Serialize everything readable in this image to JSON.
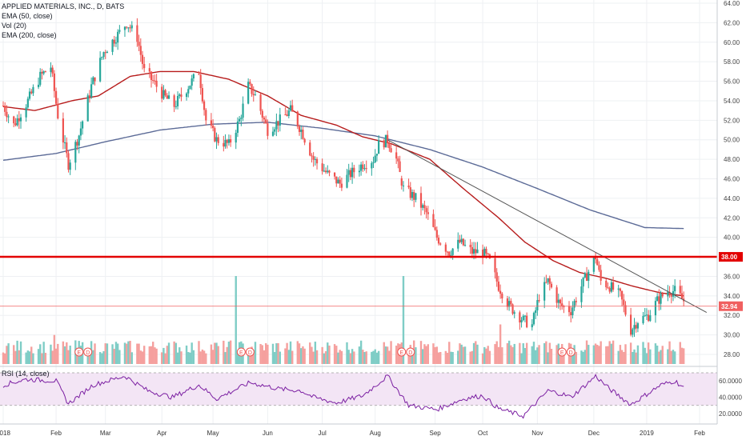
{
  "legend": {
    "symbol": "APPLIED MATERIALS, INC., D, BATS",
    "ema50": "EMA (50, close)",
    "vol": "Vol (20)",
    "ema200": "EMA (200, close)",
    "rsi": "RSI (14, close)"
  },
  "colors": {
    "up": "#26a69a",
    "down": "#ef5350",
    "vol_up": "#7fcdc6",
    "vol_down": "#f5a09e",
    "ema50": "#b71c1c",
    "ema200": "#5c6b97",
    "trendline": "#555555",
    "support": "#e30000",
    "price_line": "#f06060",
    "rsi_line": "#7b1fa2",
    "rsi_bg": "#f3e5f5",
    "earnings": "#ef5350"
  },
  "chart_data": {
    "type": "candlestick",
    "title": "APPLIED MATERIALS, INC., D, BATS",
    "y_axis_ticks": [
      "64.00",
      "62.00",
      "60.00",
      "58.00",
      "56.00",
      "54.00",
      "52.00",
      "50.00",
      "48.00",
      "46.00",
      "44.00",
      "42.00",
      "40.00",
      "38.00",
      "36.00",
      "34.00",
      "32.00",
      "30.00",
      "28.00"
    ],
    "ylim": [
      27,
      64.5
    ],
    "rsi_ticks": [
      "60.0000",
      "40.0000",
      "20.0000"
    ],
    "rsi_ylim": [
      14,
      72
    ],
    "x_tick_labels": [
      "2018",
      "Feb",
      "Mar",
      "Apr",
      "May",
      "Jun",
      "Jul",
      "Aug",
      "Sep",
      "Oct",
      "Nov",
      "Dec",
      "2019",
      "Feb"
    ],
    "x_tick_dates": [
      "2018-01-02",
      "2018-02-01",
      "2018-03-01",
      "2018-04-02",
      "2018-05-01",
      "2018-06-01",
      "2018-07-02",
      "2018-08-01",
      "2018-09-04",
      "2018-10-01",
      "2018-11-01",
      "2018-12-03",
      "2019-01-02",
      "2019-02-01"
    ],
    "price_anchors": [
      [
        "2018-01-02",
        53.5
      ],
      [
        "2018-01-08",
        51.5
      ],
      [
        "2018-01-16",
        54.0
      ],
      [
        "2018-01-23",
        56.5
      ],
      [
        "2018-01-29",
        57.5
      ],
      [
        "2018-02-02",
        52.5
      ],
      [
        "2018-02-08",
        47.5
      ],
      [
        "2018-02-14",
        50.5
      ],
      [
        "2018-02-21",
        55.5
      ],
      [
        "2018-02-28",
        59.0
      ],
      [
        "2018-03-09",
        61.0
      ],
      [
        "2018-03-13",
        62.0
      ],
      [
        "2018-03-19",
        60.5
      ],
      [
        "2018-03-23",
        57.0
      ],
      [
        "2018-03-28",
        56.0
      ],
      [
        "2018-04-03",
        54.5
      ],
      [
        "2018-04-09",
        53.5
      ],
      [
        "2018-04-17",
        55.5
      ],
      [
        "2018-04-23",
        57.0
      ],
      [
        "2018-04-27",
        52.0
      ],
      [
        "2018-05-03",
        50.0
      ],
      [
        "2018-05-10",
        49.5
      ],
      [
        "2018-05-16",
        52.0
      ],
      [
        "2018-05-21",
        55.5
      ],
      [
        "2018-05-25",
        54.5
      ],
      [
        "2018-06-01",
        51.0
      ],
      [
        "2018-06-08",
        52.0
      ],
      [
        "2018-06-14",
        53.0
      ],
      [
        "2018-06-20",
        51.0
      ],
      [
        "2018-06-27",
        48.0
      ],
      [
        "2018-07-05",
        46.5
      ],
      [
        "2018-07-12",
        45.5
      ],
      [
        "2018-07-18",
        46.5
      ],
      [
        "2018-07-25",
        47.5
      ],
      [
        "2018-07-31",
        48.0
      ],
      [
        "2018-08-03",
        49.5
      ],
      [
        "2018-08-08",
        50.0
      ],
      [
        "2018-08-13",
        48.0
      ],
      [
        "2018-08-17",
        45.0
      ],
      [
        "2018-08-24",
        44.0
      ],
      [
        "2018-08-30",
        42.5
      ],
      [
        "2018-09-05",
        40.0
      ],
      [
        "2018-09-12",
        38.5
      ],
      [
        "2018-09-18",
        39.5
      ],
      [
        "2018-09-25",
        38.5
      ],
      [
        "2018-10-01",
        38.5
      ],
      [
        "2018-10-05",
        37.5
      ],
      [
        "2018-10-10",
        35.0
      ],
      [
        "2018-10-16",
        33.0
      ],
      [
        "2018-10-24",
        31.5
      ],
      [
        "2018-10-29",
        31.0
      ],
      [
        "2018-11-02",
        34.0
      ],
      [
        "2018-11-07",
        35.5
      ],
      [
        "2018-11-14",
        33.0
      ],
      [
        "2018-11-20",
        32.5
      ],
      [
        "2018-11-26",
        35.0
      ],
      [
        "2018-11-30",
        36.5
      ],
      [
        "2018-12-04",
        38.0
      ],
      [
        "2018-12-07",
        35.5
      ],
      [
        "2018-12-12",
        35.0
      ],
      [
        "2018-12-18",
        34.0
      ],
      [
        "2018-12-24",
        30.5
      ],
      [
        "2018-12-28",
        31.5
      ],
      [
        "2019-01-03",
        32.0
      ],
      [
        "2019-01-08",
        33.5
      ],
      [
        "2019-01-14",
        34.5
      ],
      [
        "2019-01-18",
        34.5
      ],
      [
        "2019-01-23",
        33.5
      ]
    ],
    "gap_dates": [
      "2018-08-16"
    ],
    "ema50_anchors": [
      [
        "2018-01-02",
        53.4
      ],
      [
        "2018-01-20",
        53.0
      ],
      [
        "2018-02-10",
        54.0
      ],
      [
        "2018-02-25",
        54.5
      ],
      [
        "2018-03-15",
        56.5
      ],
      [
        "2018-04-01",
        57.0
      ],
      [
        "2018-04-20",
        57.0
      ],
      [
        "2018-05-10",
        56.2
      ],
      [
        "2018-06-01",
        54.5
      ],
      [
        "2018-06-20",
        52.5
      ],
      [
        "2018-07-10",
        51.5
      ],
      [
        "2018-07-25",
        50.3
      ],
      [
        "2018-08-10",
        49.6
      ],
      [
        "2018-09-01",
        48.0
      ],
      [
        "2018-09-20",
        45.0
      ],
      [
        "2018-10-10",
        42.0
      ],
      [
        "2018-10-25",
        39.5
      ],
      [
        "2018-11-10",
        37.6
      ],
      [
        "2018-11-25",
        36.4
      ],
      [
        "2018-12-10",
        35.8
      ],
      [
        "2018-12-25",
        35.0
      ],
      [
        "2019-01-10",
        34.3
      ],
      [
        "2019-01-23",
        34.0
      ]
    ],
    "ema200_anchors": [
      [
        "2018-01-02",
        47.9
      ],
      [
        "2018-02-01",
        48.6
      ],
      [
        "2018-03-01",
        49.8
      ],
      [
        "2018-04-01",
        51.0
      ],
      [
        "2018-05-01",
        51.6
      ],
      [
        "2018-06-01",
        51.8
      ],
      [
        "2018-07-01",
        51.2
      ],
      [
        "2018-08-01",
        50.4
      ],
      [
        "2018-09-01",
        49.0
      ],
      [
        "2018-10-01",
        47.2
      ],
      [
        "2018-11-01",
        45.0
      ],
      [
        "2018-12-01",
        42.8
      ],
      [
        "2019-01-01",
        41.0
      ],
      [
        "2019-01-23",
        40.9
      ]
    ],
    "trendline": {
      "start": [
        "2018-08-08",
        50.0
      ],
      "end": [
        "2019-02-05",
        32.3
      ]
    },
    "support_level": "38.00",
    "current_price": "32.94",
    "volume_spikes": [
      [
        "2018-05-14",
        1.0
      ],
      [
        "2018-08-17",
        1.0
      ],
      [
        "2018-10-11",
        0.45
      ],
      [
        "2018-01-31",
        0.33
      ]
    ],
    "earnings_markers": [
      {
        "date": "2018-02-14",
        "label": "E"
      },
      {
        "date": "2018-02-19",
        "label": "D"
      },
      {
        "date": "2018-05-17",
        "label": "E"
      },
      {
        "date": "2018-05-22",
        "label": "D"
      },
      {
        "date": "2018-08-16",
        "label": "E"
      },
      {
        "date": "2018-08-21",
        "label": "D"
      },
      {
        "date": "2018-11-15",
        "label": "E"
      },
      {
        "date": "2018-11-20",
        "label": "D"
      }
    ],
    "rsi_anchors": [
      [
        "2018-01-02",
        55
      ],
      [
        "2018-01-15",
        62
      ],
      [
        "2018-02-01",
        60
      ],
      [
        "2018-02-08",
        32
      ],
      [
        "2018-02-22",
        55
      ],
      [
        "2018-03-12",
        66
      ],
      [
        "2018-03-25",
        48
      ],
      [
        "2018-04-08",
        40
      ],
      [
        "2018-04-23",
        55
      ],
      [
        "2018-05-03",
        38
      ],
      [
        "2018-05-22",
        58
      ],
      [
        "2018-06-08",
        50
      ],
      [
        "2018-06-20",
        48
      ],
      [
        "2018-06-27",
        40
      ],
      [
        "2018-07-10",
        33
      ],
      [
        "2018-07-25",
        42
      ],
      [
        "2018-08-08",
        66
      ],
      [
        "2018-08-20",
        30
      ],
      [
        "2018-09-05",
        25
      ],
      [
        "2018-09-20",
        38
      ],
      [
        "2018-10-01",
        42
      ],
      [
        "2018-10-10",
        26
      ],
      [
        "2018-10-24",
        17
      ],
      [
        "2018-11-07",
        48
      ],
      [
        "2018-11-15",
        44
      ],
      [
        "2018-11-20",
        40
      ],
      [
        "2018-11-30",
        58
      ],
      [
        "2018-12-04",
        66
      ],
      [
        "2018-12-12",
        50
      ],
      [
        "2018-12-24",
        31
      ],
      [
        "2019-01-10",
        55
      ],
      [
        "2019-01-18",
        60
      ],
      [
        "2019-01-23",
        52
      ]
    ]
  }
}
